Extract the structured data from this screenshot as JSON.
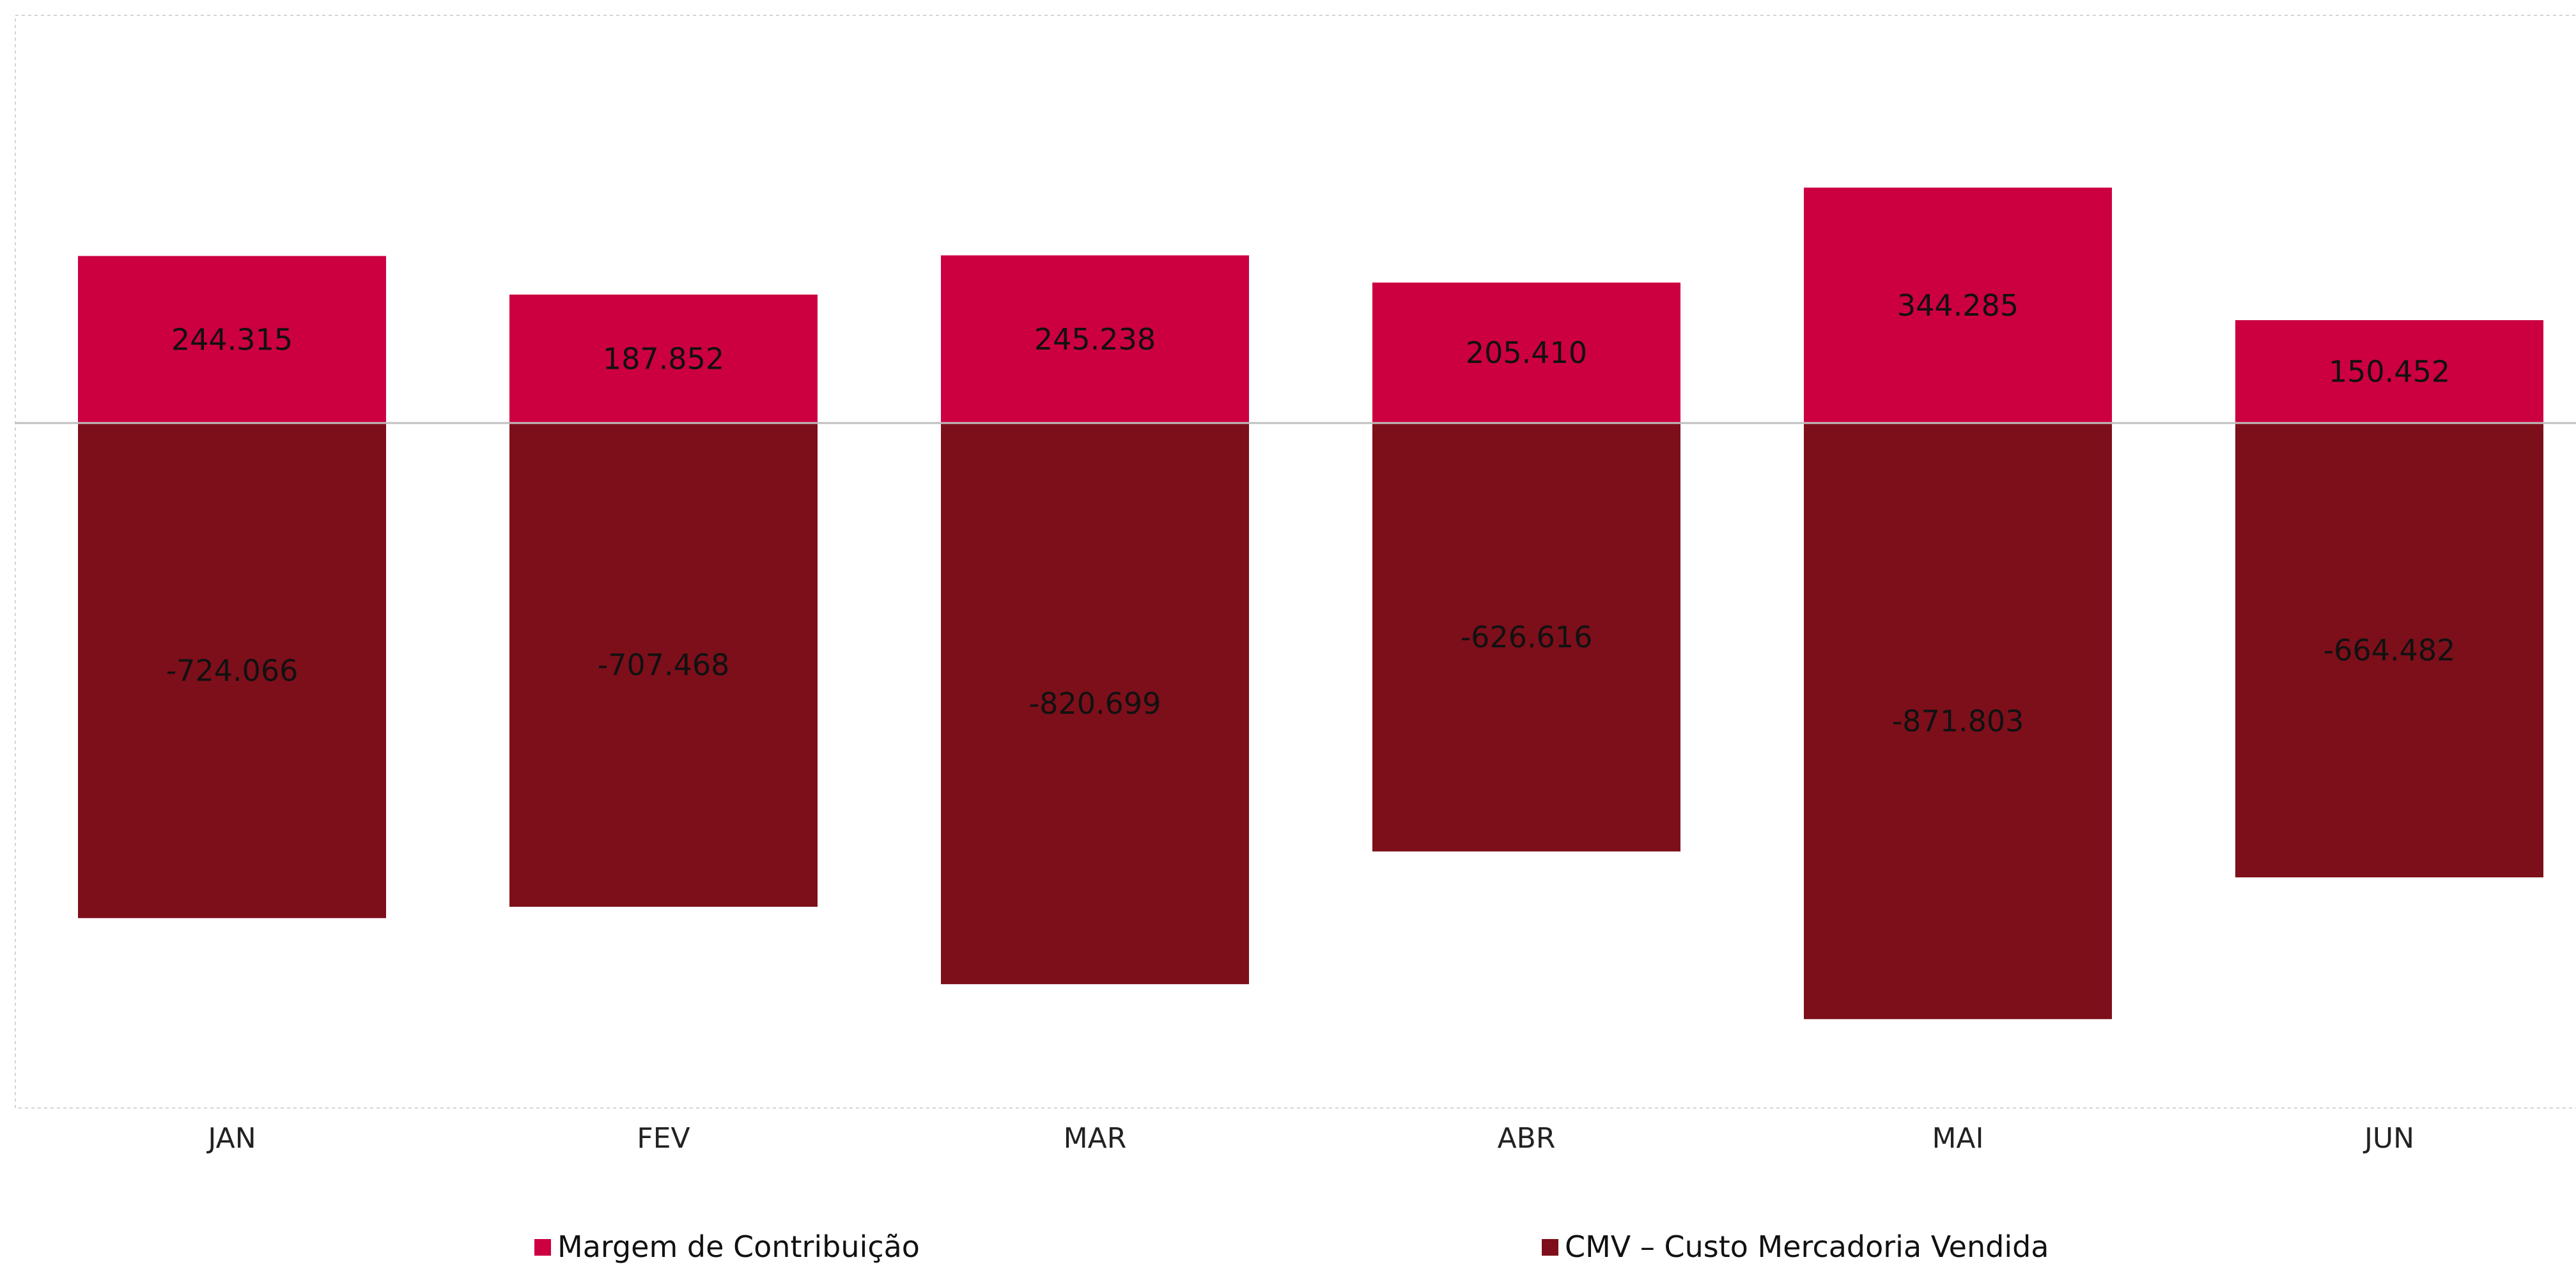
{
  "chart_data": {
    "type": "bar",
    "stacked": true,
    "categories": [
      "JAN",
      "FEV",
      "MAR",
      "ABR",
      "MAI",
      "JUN"
    ],
    "series": [
      {
        "name": "Margem de Contribuição",
        "color": "#CC0040",
        "values": [
          244315,
          187852,
          245238,
          205410,
          344285,
          150452
        ],
        "labels": [
          "244.315",
          "187.852",
          "245.238",
          "205.410",
          "344.285",
          "150.452"
        ]
      },
      {
        "name": "CMV – Custo Mercadoria Vendida",
        "color": "#7D0F1A",
        "values": [
          -724066,
          -707468,
          -820699,
          -626616,
          -871803,
          -664482
        ],
        "labels": [
          "-724.066",
          "-707.468",
          "-820.699",
          "-626.616",
          "-871.803",
          "-664.482"
        ]
      }
    ],
    "ylim": [
      -1000000,
      600000
    ],
    "grid": false,
    "zero_line_color": "#BFBFBF",
    "legend_position": "bottom"
  }
}
